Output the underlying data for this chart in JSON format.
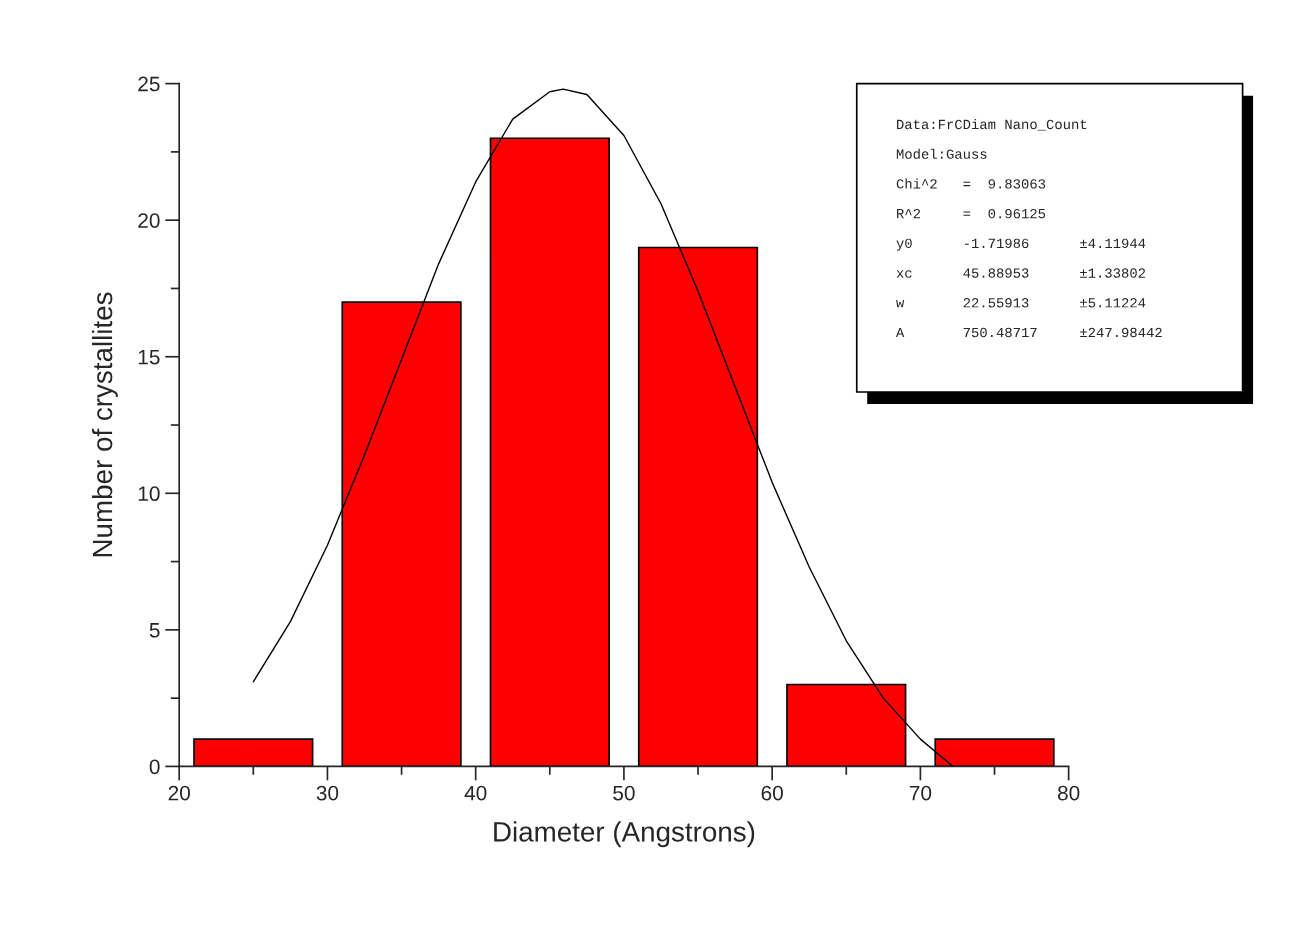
{
  "chart_data": {
    "type": "bar",
    "xlabel": "Diameter (Angstrons)",
    "ylabel": "Number of crystallites",
    "x": [
      25,
      35,
      45,
      55,
      65,
      75
    ],
    "series": [
      {
        "color": "#ff0000",
        "values": [
          1,
          17,
          23,
          19,
          3,
          1
        ]
      },
      {
        "type": "line",
        "color": "#000000",
        "x": [
          25,
          27.5,
          30,
          32.5,
          35,
          37.5,
          40,
          42.5,
          45,
          45.9,
          47.5,
          50,
          52.5,
          55,
          57.5,
          60,
          62.5,
          65,
          67.5,
          70,
          72.2
        ],
        "values": [
          3.1,
          5.3,
          8.1,
          11.4,
          14.9,
          18.4,
          21.4,
          23.7,
          24.7,
          24.8,
          24.6,
          23.1,
          20.6,
          17.4,
          13.9,
          10.4,
          7.3,
          4.6,
          2.5,
          1.0,
          0.0
        ]
      }
    ],
    "xlim": [
      20,
      80
    ],
    "xticks": [
      20,
      30,
      40,
      50,
      60,
      70,
      80
    ],
    "ylim": [
      0,
      25
    ],
    "yticks": [
      0,
      5,
      10,
      15,
      20,
      25
    ],
    "grid": false,
    "marker": "none",
    "line_style": "solid",
    "annotations": [
      "Data:FrCDiam Nano_Count",
      "Model:Gauss",
      "Chi^2   =  9.83063",
      "R^2     =  0.96125",
      "y0      -1.71986      ±4.11944",
      "xc      45.88953      ±1.33802",
      "w       22.55913      ±5.11224",
      "A       750.48717     ±247.98442"
    ]
  }
}
